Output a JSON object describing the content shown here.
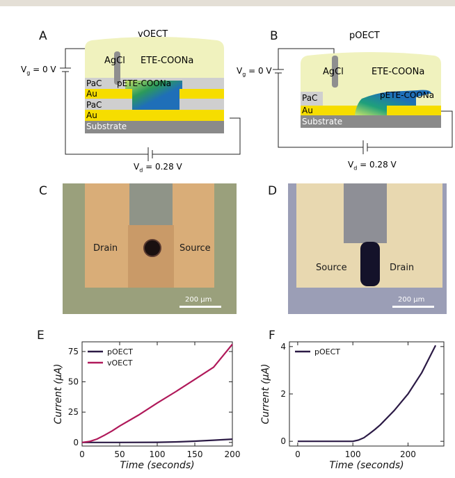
{
  "panels": {
    "A": "A",
    "B": "B",
    "C": "C",
    "D": "D",
    "E": "E",
    "F": "F"
  },
  "schematic_a": {
    "title": "vOECT",
    "agcl": "AgCl",
    "electrolyte": "ETE-COONa",
    "layers": [
      "PaC",
      "Au",
      "PaC",
      "Au",
      "Substrate"
    ],
    "polymer": "pETE-COONa",
    "vg": "V",
    "vg_sub": "g",
    "vg_value": " = 0 V",
    "vd": "V",
    "vd_sub": "d",
    "vd_value": " = 0.28 V"
  },
  "schematic_b": {
    "title": "pOECT",
    "agcl": "AgCl",
    "electrolyte": "ETE-COONa",
    "layers": [
      "PaC",
      "Au",
      "Substrate"
    ],
    "polymer": "pETE-COONa",
    "vg": "V",
    "vg_sub": "g",
    "vg_value": " = 0 V",
    "vd": "V",
    "vd_sub": "d",
    "vd_value": " = 0.28 V"
  },
  "micro_c": {
    "left_label": "Drain",
    "right_label": "Source",
    "scale": "200 µm"
  },
  "micro_d": {
    "left_label": "Source",
    "right_label": "Drain",
    "scale": "200 µm"
  },
  "chart_data": [
    {
      "type": "line",
      "panel": "E",
      "xlabel": "Time (seconds)",
      "ylabel": "Current (µA)",
      "xlim": [
        0,
        200
      ],
      "ylim": [
        -3,
        83
      ],
      "xticks": [
        0,
        50,
        100,
        150,
        200
      ],
      "yticks": [
        0,
        25,
        50,
        75
      ],
      "legend": "top-left",
      "series": [
        {
          "name": "pOECT",
          "color": "#2b1a45",
          "x": [
            0,
            50,
            100,
            130,
            150,
            175,
            200
          ],
          "y": [
            0,
            0,
            0.1,
            0.5,
            1.0,
            1.8,
            2.7
          ]
        },
        {
          "name": "vOECT",
          "color": "#b0195a",
          "x": [
            0,
            10,
            20,
            30,
            40,
            50,
            75,
            100,
            125,
            150,
            175,
            200
          ],
          "y": [
            0,
            0.8,
            2.8,
            6,
            9.5,
            13.5,
            22.5,
            32.5,
            42,
            52,
            62,
            81
          ]
        }
      ]
    },
    {
      "type": "line",
      "panel": "F",
      "xlabel": "Time (seconds)",
      "ylabel": "Current (µA)",
      "xlim": [
        -15,
        265
      ],
      "ylim": [
        -0.2,
        4.2
      ],
      "xticks": [
        0,
        100,
        200
      ],
      "yticks": [
        0,
        2,
        4
      ],
      "legend": "top-left",
      "series": [
        {
          "name": "pOECT",
          "color": "#2b1a45",
          "x": [
            0,
            50,
            100,
            110,
            120,
            130,
            140,
            150,
            175,
            200,
            225,
            250
          ],
          "y": [
            0,
            0,
            0,
            0.05,
            0.15,
            0.32,
            0.5,
            0.7,
            1.3,
            2.0,
            2.9,
            4.05
          ]
        }
      ]
    }
  ]
}
